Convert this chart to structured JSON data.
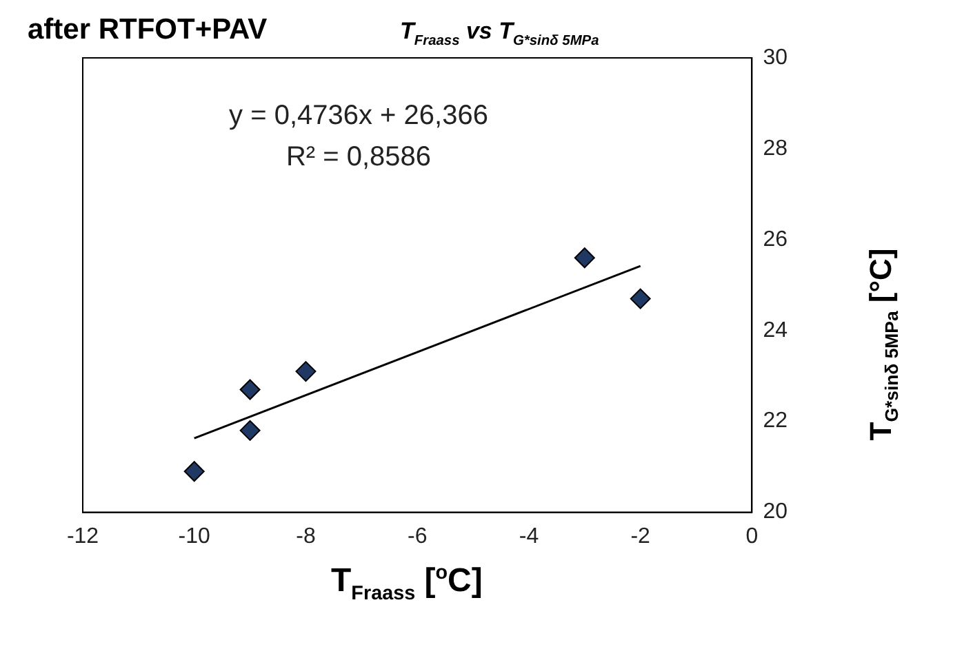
{
  "chart_data": {
    "type": "scatter",
    "title": "after RTFOT+PAV",
    "subtitle": "T$_{Fraass}$ vs  T$_{G*sinδ 5MPa}$",
    "xlabel": "T$_{Fraass}$ [$^{o}$C]",
    "ylabel": "T$_{G*sinδ 5MPa}$ [°C]",
    "annotations": [
      "y = 0,4736x + 26,366",
      "R² = 0,8586"
    ],
    "xlim": [
      -12,
      0
    ],
    "xticks": [
      -12,
      -10,
      -8,
      -6,
      -4,
      -2,
      0
    ],
    "ylim": [
      20,
      30
    ],
    "yticks": [
      20,
      22,
      24,
      26,
      28,
      30
    ],
    "grid": false,
    "legend": false,
    "marker": "diamond",
    "series": [
      {
        "color": "#1f3864",
        "x": [
          -10,
          -9,
          -9,
          -8,
          -3,
          -2
        ],
        "values": [
          20.9,
          22.7,
          21.8,
          23.1,
          25.6,
          24.7
        ]
      },
      {
        "type": "line",
        "marker": "none",
        "color": "#000000",
        "x": [
          -10,
          -2
        ],
        "values": [
          21.63,
          25.42
        ]
      }
    ]
  }
}
